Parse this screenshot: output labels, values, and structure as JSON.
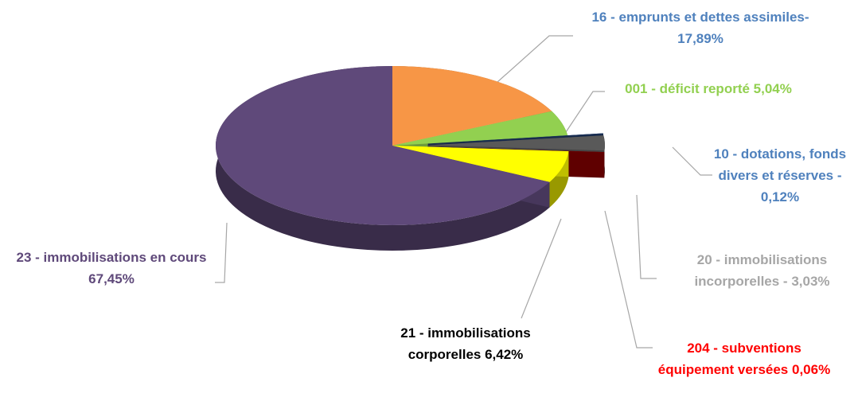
{
  "chart_data": {
    "type": "pie",
    "categories": [
      "16 - emprunts et dettes assimiles-",
      "001 - déficit reporté",
      "10 - dotations, fonds divers et réserves -",
      "20 - immobilisations incorporelles -",
      "204 - subventions équipement versées",
      "21 - immobilisations corporelles",
      "23 - immobilisations en cours"
    ],
    "values": [
      17.89,
      5.04,
      0.12,
      3.03,
      0.06,
      6.42,
      67.45
    ],
    "value_labels": [
      "17,89%",
      "5,04%",
      "0,12%",
      "3,03%",
      "0,06%",
      "6,42%",
      "67,45%"
    ],
    "colors": [
      "#f79646",
      "#92d050",
      "#1f3864",
      "#595959",
      "#7f0000",
      "#ffff00",
      "#5f497a"
    ],
    "label_colors": [
      "#4f81bd",
      "#92d050",
      "#4f81bd",
      "#a6a6a6",
      "#ff0000",
      "#000000",
      "#5f497a"
    ],
    "exploded": [
      false,
      false,
      true,
      true,
      true,
      false,
      false
    ]
  }
}
